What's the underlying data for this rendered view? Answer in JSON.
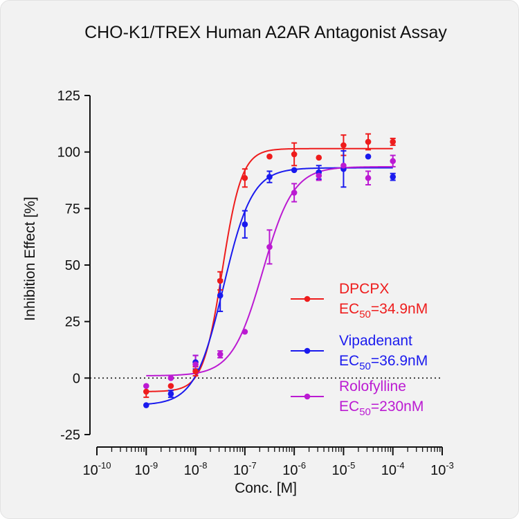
{
  "chart_data": {
    "type": "scatter",
    "title": "CHO-K1/TREX Human A2AR Antagonist Assay",
    "xlabel": "Conc. [M]",
    "ylabel": "Inhibition Effect [%]",
    "x_scale": "log",
    "xlim": [
      1e-10,
      0.001
    ],
    "ylim": [
      -25,
      125
    ],
    "x_ticks": [
      {
        "base": "10",
        "exp": "-10"
      },
      {
        "base": "10",
        "exp": "-9"
      },
      {
        "base": "10",
        "exp": "-8"
      },
      {
        "base": "10",
        "exp": "-7"
      },
      {
        "base": "10",
        "exp": "-6"
      },
      {
        "base": "10",
        "exp": "-5"
      },
      {
        "base": "10",
        "exp": "-4"
      },
      {
        "base": "10",
        "exp": "-3"
      }
    ],
    "y_ticks": [
      "-25",
      "0",
      "25",
      "50",
      "75",
      "100",
      "125"
    ],
    "reference_line": {
      "y": 0,
      "style": "dotted"
    },
    "grid": false,
    "legend_position": "right",
    "series": [
      {
        "name": "DPCPX",
        "ec50_prefix": "EC",
        "ec50_sub": "50",
        "ec50_value": "=34.9nM",
        "color": "#ee1c1c",
        "fit": {
          "bottom": -6,
          "top": 101.5,
          "ec50": 3.49e-08,
          "hill": 2.2
        },
        "points": [
          {
            "x": 1e-09,
            "y": -6,
            "err": 2.5
          },
          {
            "x": 3.16e-09,
            "y": -3.5,
            "err": 0
          },
          {
            "x": 1e-08,
            "y": 3,
            "err": 2
          },
          {
            "x": 3.16e-08,
            "y": 43,
            "err": 4
          },
          {
            "x": 1e-07,
            "y": 88.5,
            "err": 4
          },
          {
            "x": 3.16e-07,
            "y": 98,
            "err": 0
          },
          {
            "x": 1e-06,
            "y": 99,
            "err": 5
          },
          {
            "x": 3.16e-06,
            "y": 97.5,
            "err": 0
          },
          {
            "x": 1e-05,
            "y": 103,
            "err": 4.5
          },
          {
            "x": 3.16e-05,
            "y": 104.5,
            "err": 3.5
          },
          {
            "x": 0.0001,
            "y": 104.5,
            "err": 1.5
          }
        ]
      },
      {
        "name": "Vipadenant",
        "ec50_prefix": "EC",
        "ec50_sub": "50",
        "ec50_value": "=36.9nM",
        "color": "#1a1aee",
        "fit": {
          "bottom": -12,
          "top": 93,
          "ec50": 3.69e-08,
          "hill": 1.5
        },
        "points": [
          {
            "x": 1e-09,
            "y": -12,
            "err": 0
          },
          {
            "x": 3.16e-09,
            "y": -7,
            "err": 1.5
          },
          {
            "x": 1e-08,
            "y": 7,
            "err": 3
          },
          {
            "x": 3.16e-08,
            "y": 36.5,
            "err": 7
          },
          {
            "x": 1e-07,
            "y": 68,
            "err": 6
          },
          {
            "x": 3.16e-07,
            "y": 89,
            "err": 2.5
          },
          {
            "x": 1e-06,
            "y": 92,
            "err": 0
          },
          {
            "x": 3.16e-06,
            "y": 91,
            "err": 3
          },
          {
            "x": 1e-05,
            "y": 92.5,
            "err": 8
          },
          {
            "x": 3.16e-05,
            "y": 98,
            "err": 0
          },
          {
            "x": 0.0001,
            "y": 89,
            "err": 1.5
          }
        ]
      },
      {
        "name": "Rolofylline",
        "ec50_prefix": "EC",
        "ec50_sub": "50",
        "ec50_value": "=230nM",
        "color": "#bb1ad2",
        "fit": {
          "bottom": 1,
          "top": 93.5,
          "ec50": 2.3e-07,
          "hill": 1.4
        },
        "points": [
          {
            "x": 1e-09,
            "y": -3.5,
            "err": 0
          },
          {
            "x": 3.16e-09,
            "y": 0,
            "err": 0
          },
          {
            "x": 1e-08,
            "y": 6,
            "err": 4
          },
          {
            "x": 3.16e-08,
            "y": 10.5,
            "err": 1.5
          },
          {
            "x": 1e-07,
            "y": 20.5,
            "err": 0
          },
          {
            "x": 3.16e-07,
            "y": 58,
            "err": 7.5
          },
          {
            "x": 1e-06,
            "y": 82,
            "err": 4
          },
          {
            "x": 3.16e-06,
            "y": 89.5,
            "err": 2
          },
          {
            "x": 1e-05,
            "y": 94,
            "err": 0
          },
          {
            "x": 3.16e-05,
            "y": 88.5,
            "err": 3
          },
          {
            "x": 0.0001,
            "y": 96,
            "err": 2.5
          }
        ]
      }
    ]
  }
}
